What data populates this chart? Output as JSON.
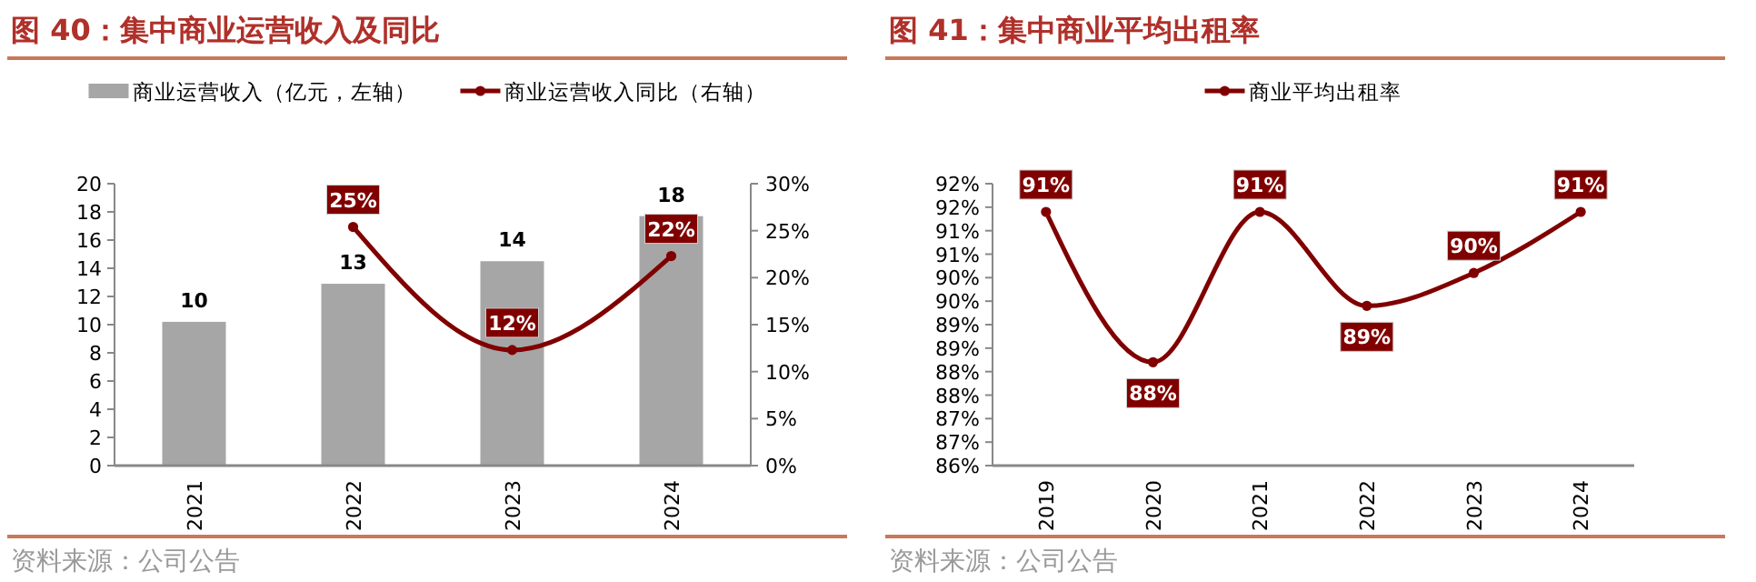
{
  "chart_data": [
    {
      "type": "bar",
      "title": "图 40：集中商业运营收入及同比",
      "categories": [
        "2021",
        "2022",
        "2023",
        "2024"
      ],
      "series": [
        {
          "name": "商业运营收入（亿元，左轴）",
          "color": "#a6a6a6",
          "values": [
            10.2,
            12.9,
            14.5,
            17.7
          ],
          "value_labels": [
            "10",
            "13",
            "14",
            "18"
          ]
        },
        {
          "name": "商业运营收入同比（右轴）",
          "type": "line",
          "axis": "y2",
          "color": "#800000",
          "values": [
            null,
            25.4,
            12.3,
            22.3
          ],
          "value_labels": [
            null,
            "25%",
            "12%",
            "22%"
          ]
        }
      ],
      "ylim": [
        0,
        20
      ],
      "yticks": [
        0,
        2,
        4,
        6,
        8,
        10,
        12,
        14,
        16,
        18,
        20
      ],
      "y2lim": [
        0,
        30
      ],
      "y2ticks": [
        {
          "value": 0,
          "label": "0%"
        },
        {
          "value": 5,
          "label": "5%"
        },
        {
          "value": 10,
          "label": "10%"
        },
        {
          "value": 15,
          "label": "15%"
        },
        {
          "value": 20,
          "label": "20%"
        },
        {
          "value": 25,
          "label": "25%"
        },
        {
          "value": 30,
          "label": "30%"
        }
      ],
      "legend": "top",
      "marker": "circle",
      "grid": false,
      "annotations": [
        "资料来源：公司公告"
      ]
    },
    {
      "type": "line",
      "title": "图 41：集中商业平均出租率",
      "categories": [
        "2019",
        "2020",
        "2021",
        "2022",
        "2023",
        "2024"
      ],
      "series": [
        {
          "name": "商业平均出租率",
          "color": "#800000",
          "values": [
            91.4,
            88.2,
            91.4,
            89.4,
            90.1,
            91.4
          ],
          "value_labels": [
            "91%",
            "88%",
            "91%",
            "89%",
            "90%",
            "91%"
          ]
        }
      ],
      "ylim": [
        86,
        92
      ],
      "yticks": [
        {
          "value": 86,
          "label": "86%"
        },
        {
          "value": 86.5,
          "label": "87%"
        },
        {
          "value": 87,
          "label": "87%"
        },
        {
          "value": 87.5,
          "label": "88%"
        },
        {
          "value": 88,
          "label": "88%"
        },
        {
          "value": 88.5,
          "label": "89%"
        },
        {
          "value": 89,
          "label": "89%"
        },
        {
          "value": 89.5,
          "label": "90%"
        },
        {
          "value": 90,
          "label": "90%"
        },
        {
          "value": 90.5,
          "label": "91%"
        },
        {
          "value": 91,
          "label": "91%"
        },
        {
          "value": 91.5,
          "label": "92%"
        },
        {
          "value": 92,
          "label": "92%"
        }
      ],
      "legend": "top",
      "marker": "circle",
      "grid": false,
      "annotations": [
        "资料来源：公司公告"
      ]
    }
  ]
}
